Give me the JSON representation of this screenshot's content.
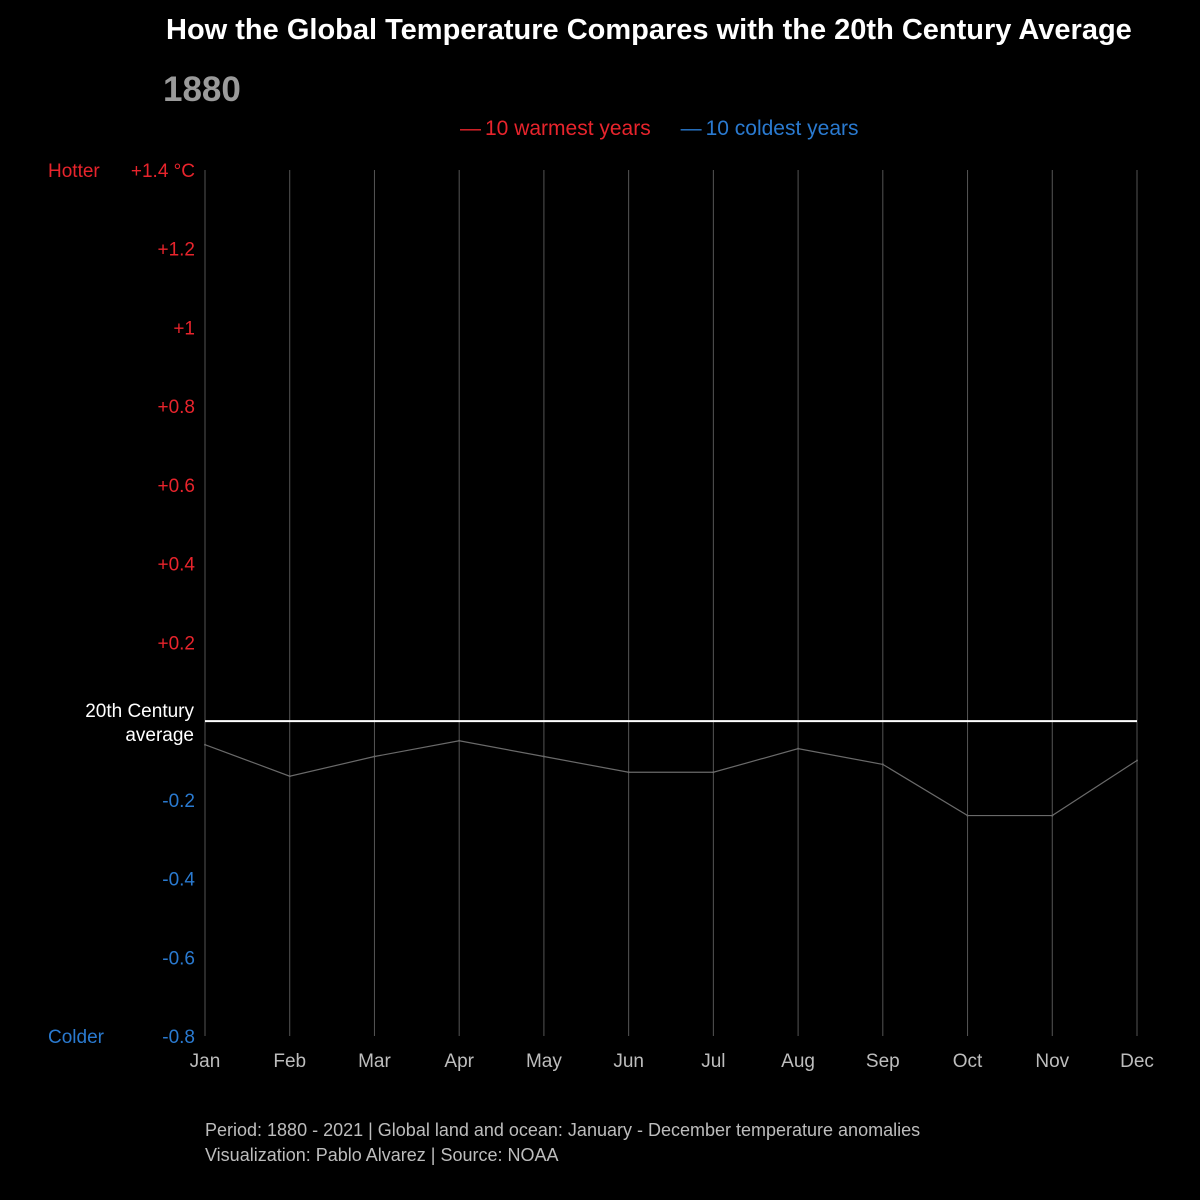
{
  "chart_data": {
    "type": "line",
    "title": "How the Global Temperature Compares with the 20th Century Average",
    "current_year": "1880",
    "legend": [
      {
        "label": "10 warmest years",
        "color": "#e8242c"
      },
      {
        "label": "10 coldest years",
        "color": "#2a7ad0"
      }
    ],
    "legend_marker": "—",
    "categories": [
      "Jan",
      "Feb",
      "Mar",
      "Apr",
      "May",
      "Jun",
      "Jul",
      "Aug",
      "Sep",
      "Oct",
      "Nov",
      "Dec"
    ],
    "series": [
      {
        "name": "1880",
        "values": [
          -0.06,
          -0.14,
          -0.09,
          -0.05,
          -0.09,
          -0.13,
          -0.13,
          -0.07,
          -0.11,
          -0.24,
          -0.24,
          -0.1
        ]
      }
    ],
    "ylim": [
      -0.8,
      1.4
    ],
    "y_ticks": [
      {
        "value": 1.4,
        "label": "+1.4 °C"
      },
      {
        "value": 1.2,
        "label": "+1.2"
      },
      {
        "value": 1.0,
        "label": "+1"
      },
      {
        "value": 0.8,
        "label": "+0.8"
      },
      {
        "value": 0.6,
        "label": "+0.6"
      },
      {
        "value": 0.4,
        "label": "+0.4"
      },
      {
        "value": 0.2,
        "label": "+0.2"
      },
      {
        "value": -0.2,
        "label": "-0.2"
      },
      {
        "value": -0.4,
        "label": "-0.4"
      },
      {
        "value": -0.6,
        "label": "-0.6"
      },
      {
        "value": -0.8,
        "label": "-0.8"
      }
    ],
    "hotter_label": "Hotter",
    "colder_label": "Colder",
    "baseline": {
      "value": 0,
      "label_line1": "20th Century",
      "label_line2": "average"
    },
    "colors": {
      "warm": "#e8242c",
      "cold": "#2a7ad0",
      "gridline": "#555555",
      "baseline": "#ffffff",
      "series": "#6a6a6a",
      "month_label": "#bdbdbd"
    }
  },
  "footer": {
    "line1": "Period: 1880 - 2021 | Global land and ocean: January - December temperature anomalies",
    "line2": "Visualization: Pablo Alvarez | Source: NOAA"
  }
}
